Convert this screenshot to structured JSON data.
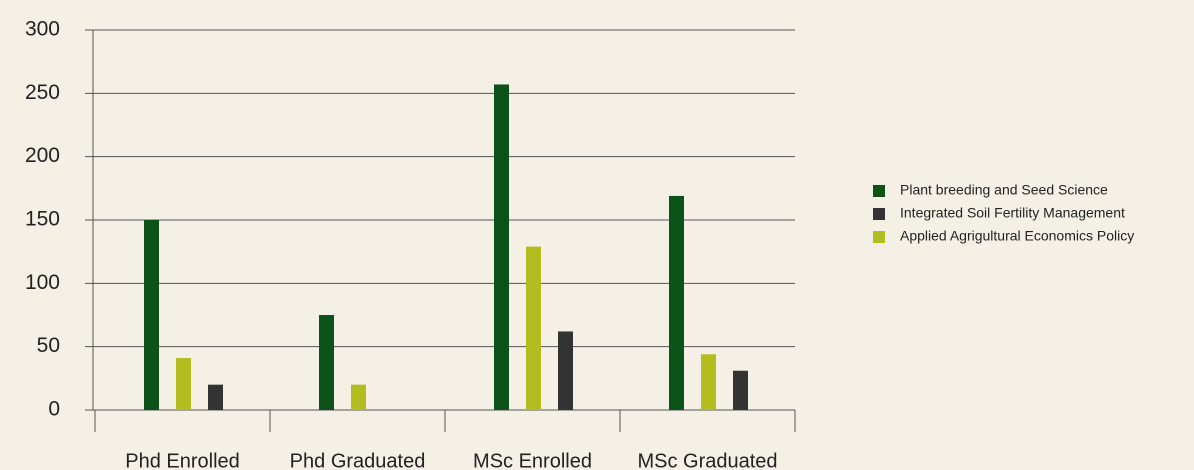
{
  "chart_data": {
    "type": "bar",
    "categories": [
      "Phd Enrolled",
      "Phd Graduated",
      "MSc Enrolled",
      "MSc Graduated"
    ],
    "series": [
      {
        "name": "Plant breeding and Seed Science",
        "color": "#0d5218",
        "values": [
          150,
          75,
          257,
          169
        ]
      },
      {
        "name": "Integrated Soil Fertility Management",
        "color": "#333333",
        "values": [
          20,
          0,
          62,
          31
        ]
      },
      {
        "name": "Applied Agrigultural Economics Policy",
        "color": "#b4bd1f",
        "values": [
          41,
          20,
          129,
          44
        ]
      }
    ],
    "ylim": [
      0,
      300
    ],
    "yticks": [
      0,
      50,
      100,
      150,
      200,
      250,
      300
    ],
    "grid": true,
    "legend": "right"
  }
}
